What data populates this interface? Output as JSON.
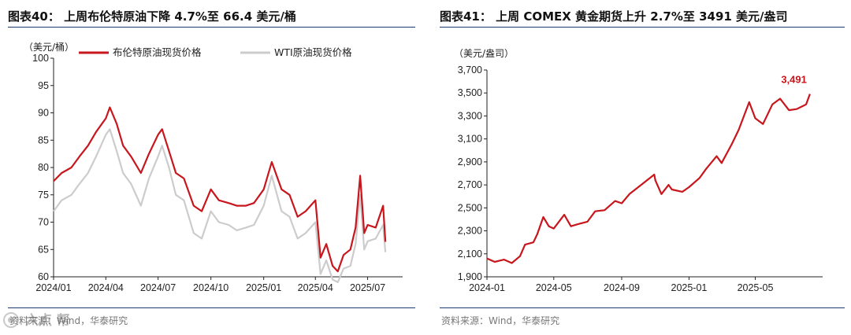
{
  "colors": {
    "accent": "#c8161d",
    "secondary": "#cccccc",
    "rule": "#1f3a6e"
  },
  "left": {
    "title": "图表40： 上周布伦特原油下降 4.7%至 66.4 美元/桶",
    "source": "资料来源：Wind，华泰研究"
  },
  "right": {
    "title": "图表41： 上周 COMEX 黄金期货上升 2.7%至 3491 美元/盎司",
    "source": "资料来源：Wind，华泰研究"
  },
  "watermark_text": "六点 帮",
  "chart_data": [
    {
      "type": "line",
      "unit_label": "（美元/桶）",
      "x_tick_labels": [
        "2024/01",
        "2024/04",
        "2024/07",
        "2024/10",
        "2025/01",
        "2025/04",
        "2025/07"
      ],
      "ylim": [
        60,
        100
      ],
      "y_ticks": [
        60,
        65,
        70,
        75,
        80,
        85,
        90,
        95,
        100
      ],
      "x_range_months": [
        "2024/01",
        "2025/08"
      ],
      "legend_placement": "top",
      "series": [
        {
          "name": "布伦特原油现货价格",
          "color": "#c8161d",
          "points": [
            [
              "2024-01",
              77.5
            ],
            [
              "2024-01-15",
              79
            ],
            [
              "2024-02",
              80
            ],
            [
              "2024-02-15",
              82
            ],
            [
              "2024-03",
              84
            ],
            [
              "2024-03-15",
              86.5
            ],
            [
              "2024-04",
              89
            ],
            [
              "2024-04-08",
              91
            ],
            [
              "2024-04-20",
              88
            ],
            [
              "2024-05",
              84
            ],
            [
              "2024-05-15",
              82
            ],
            [
              "2024-06",
              79
            ],
            [
              "2024-06-15",
              82.5
            ],
            [
              "2024-07",
              86
            ],
            [
              "2024-07-08",
              87
            ],
            [
              "2024-07-20",
              83
            ],
            [
              "2024-08",
              79
            ],
            [
              "2024-08-15",
              78
            ],
            [
              "2024-09",
              73
            ],
            [
              "2024-09-15",
              72
            ],
            [
              "2024-10",
              76
            ],
            [
              "2024-10-15",
              74
            ],
            [
              "2024-11",
              73.5
            ],
            [
              "2024-11-15",
              73
            ],
            [
              "2024-12",
              73
            ],
            [
              "2024-12-15",
              73.5
            ],
            [
              "2025-01",
              76
            ],
            [
              "2025-01-15",
              81
            ],
            [
              "2025-02",
              76
            ],
            [
              "2025-02-15",
              75
            ],
            [
              "2025-03",
              71
            ],
            [
              "2025-03-15",
              72
            ],
            [
              "2025-04",
              74
            ],
            [
              "2025-04-10",
              63.5
            ],
            [
              "2025-04-20",
              66
            ],
            [
              "2025-05",
              62
            ],
            [
              "2025-05-10",
              61
            ],
            [
              "2025-05-20",
              64
            ],
            [
              "2025-06",
              65
            ],
            [
              "2025-06-10",
              69
            ],
            [
              "2025-06-18",
              78.5
            ],
            [
              "2025-06-25",
              68
            ],
            [
              "2025-07",
              69.5
            ],
            [
              "2025-07-15",
              69
            ],
            [
              "2025-07-28",
              73
            ],
            [
              "2025-08",
              66.4
            ]
          ]
        },
        {
          "name": "WTI原油现货价格",
          "color": "#cccccc",
          "points": [
            [
              "2024-01",
              72
            ],
            [
              "2024-01-15",
              74
            ],
            [
              "2024-02",
              75
            ],
            [
              "2024-02-15",
              77
            ],
            [
              "2024-03",
              79
            ],
            [
              "2024-03-15",
              82
            ],
            [
              "2024-04",
              86
            ],
            [
              "2024-04-08",
              87
            ],
            [
              "2024-04-20",
              83
            ],
            [
              "2024-05",
              79
            ],
            [
              "2024-05-15",
              77
            ],
            [
              "2024-06",
              73
            ],
            [
              "2024-06-15",
              78
            ],
            [
              "2024-07",
              82
            ],
            [
              "2024-07-08",
              84
            ],
            [
              "2024-07-20",
              80
            ],
            [
              "2024-08",
              75
            ],
            [
              "2024-08-15",
              74
            ],
            [
              "2024-09",
              68
            ],
            [
              "2024-09-15",
              67
            ],
            [
              "2024-10",
              72
            ],
            [
              "2024-10-15",
              70
            ],
            [
              "2024-11",
              69.5
            ],
            [
              "2024-11-15",
              68.5
            ],
            [
              "2024-12",
              69
            ],
            [
              "2024-12-15",
              69.5
            ],
            [
              "2025-01",
              73
            ],
            [
              "2025-01-15",
              78.5
            ],
            [
              "2025-02",
              72
            ],
            [
              "2025-02-15",
              71
            ],
            [
              "2025-03",
              67
            ],
            [
              "2025-03-15",
              68
            ],
            [
              "2025-04",
              70
            ],
            [
              "2025-04-10",
              60.5
            ],
            [
              "2025-04-20",
              63
            ],
            [
              "2025-05",
              59.5
            ],
            [
              "2025-05-10",
              59
            ],
            [
              "2025-05-20",
              61.5
            ],
            [
              "2025-06",
              62
            ],
            [
              "2025-06-10",
              66
            ],
            [
              "2025-06-18",
              75
            ],
            [
              "2025-06-25",
              65
            ],
            [
              "2025-07",
              66.5
            ],
            [
              "2025-07-15",
              67
            ],
            [
              "2025-07-28",
              69.5
            ],
            [
              "2025-08",
              64.5
            ]
          ]
        }
      ]
    },
    {
      "type": "line",
      "unit_label": "（美元/盎司）",
      "x_tick_labels": [
        "2024-01",
        "2024-05",
        "2024-09",
        "2025-01",
        "2025-05"
      ],
      "ylim": [
        1900,
        3700
      ],
      "y_ticks": [
        1900,
        2100,
        2300,
        2500,
        2700,
        2900,
        3100,
        3300,
        3500,
        3700
      ],
      "y_tick_labels": [
        "1,900",
        "2,100",
        "2,300",
        "2,500",
        "2,700",
        "2,900",
        "3,100",
        "3,300",
        "3,500",
        "3,700"
      ],
      "x_range_months": [
        "2024-01",
        "2025-08"
      ],
      "annotation": "3,491",
      "series": [
        {
          "name": "COMEX黄金期货",
          "color": "#c8161d",
          "points": [
            [
              "2024-01",
              2060
            ],
            [
              "2024-01-15",
              2030
            ],
            [
              "2024-02",
              2050
            ],
            [
              "2024-02-15",
              2020
            ],
            [
              "2024-03",
              2080
            ],
            [
              "2024-03-10",
              2180
            ],
            [
              "2024-03-25",
              2200
            ],
            [
              "2024-04",
              2270
            ],
            [
              "2024-04-12",
              2420
            ],
            [
              "2024-04-22",
              2340
            ],
            [
              "2024-05",
              2320
            ],
            [
              "2024-05-20",
              2440
            ],
            [
              "2024-06",
              2340
            ],
            [
              "2024-06-15",
              2360
            ],
            [
              "2024-07",
              2380
            ],
            [
              "2024-07-15",
              2470
            ],
            [
              "2024-08",
              2480
            ],
            [
              "2024-08-20",
              2560
            ],
            [
              "2024-09",
              2540
            ],
            [
              "2024-09-15",
              2620
            ],
            [
              "2024-10",
              2680
            ],
            [
              "2024-10-30",
              2790
            ],
            [
              "2024-11",
              2740
            ],
            [
              "2024-11-12",
              2620
            ],
            [
              "2024-11-25",
              2700
            ],
            [
              "2024-12",
              2660
            ],
            [
              "2024-12-20",
              2640
            ],
            [
              "2025-01",
              2680
            ],
            [
              "2025-01-20",
              2760
            ],
            [
              "2025-02",
              2840
            ],
            [
              "2025-02-20",
              2950
            ],
            [
              "2025-03",
              2890
            ],
            [
              "2025-03-20",
              3060
            ],
            [
              "2025-04",
              3180
            ],
            [
              "2025-04-20",
              3420
            ],
            [
              "2025-05",
              3280
            ],
            [
              "2025-05-15",
              3230
            ],
            [
              "2025-06",
              3400
            ],
            [
              "2025-06-15",
              3450
            ],
            [
              "2025-07",
              3350
            ],
            [
              "2025-07-15",
              3360
            ],
            [
              "2025-08",
              3400
            ],
            [
              "2025-08-08",
              3491
            ]
          ]
        }
      ]
    }
  ]
}
